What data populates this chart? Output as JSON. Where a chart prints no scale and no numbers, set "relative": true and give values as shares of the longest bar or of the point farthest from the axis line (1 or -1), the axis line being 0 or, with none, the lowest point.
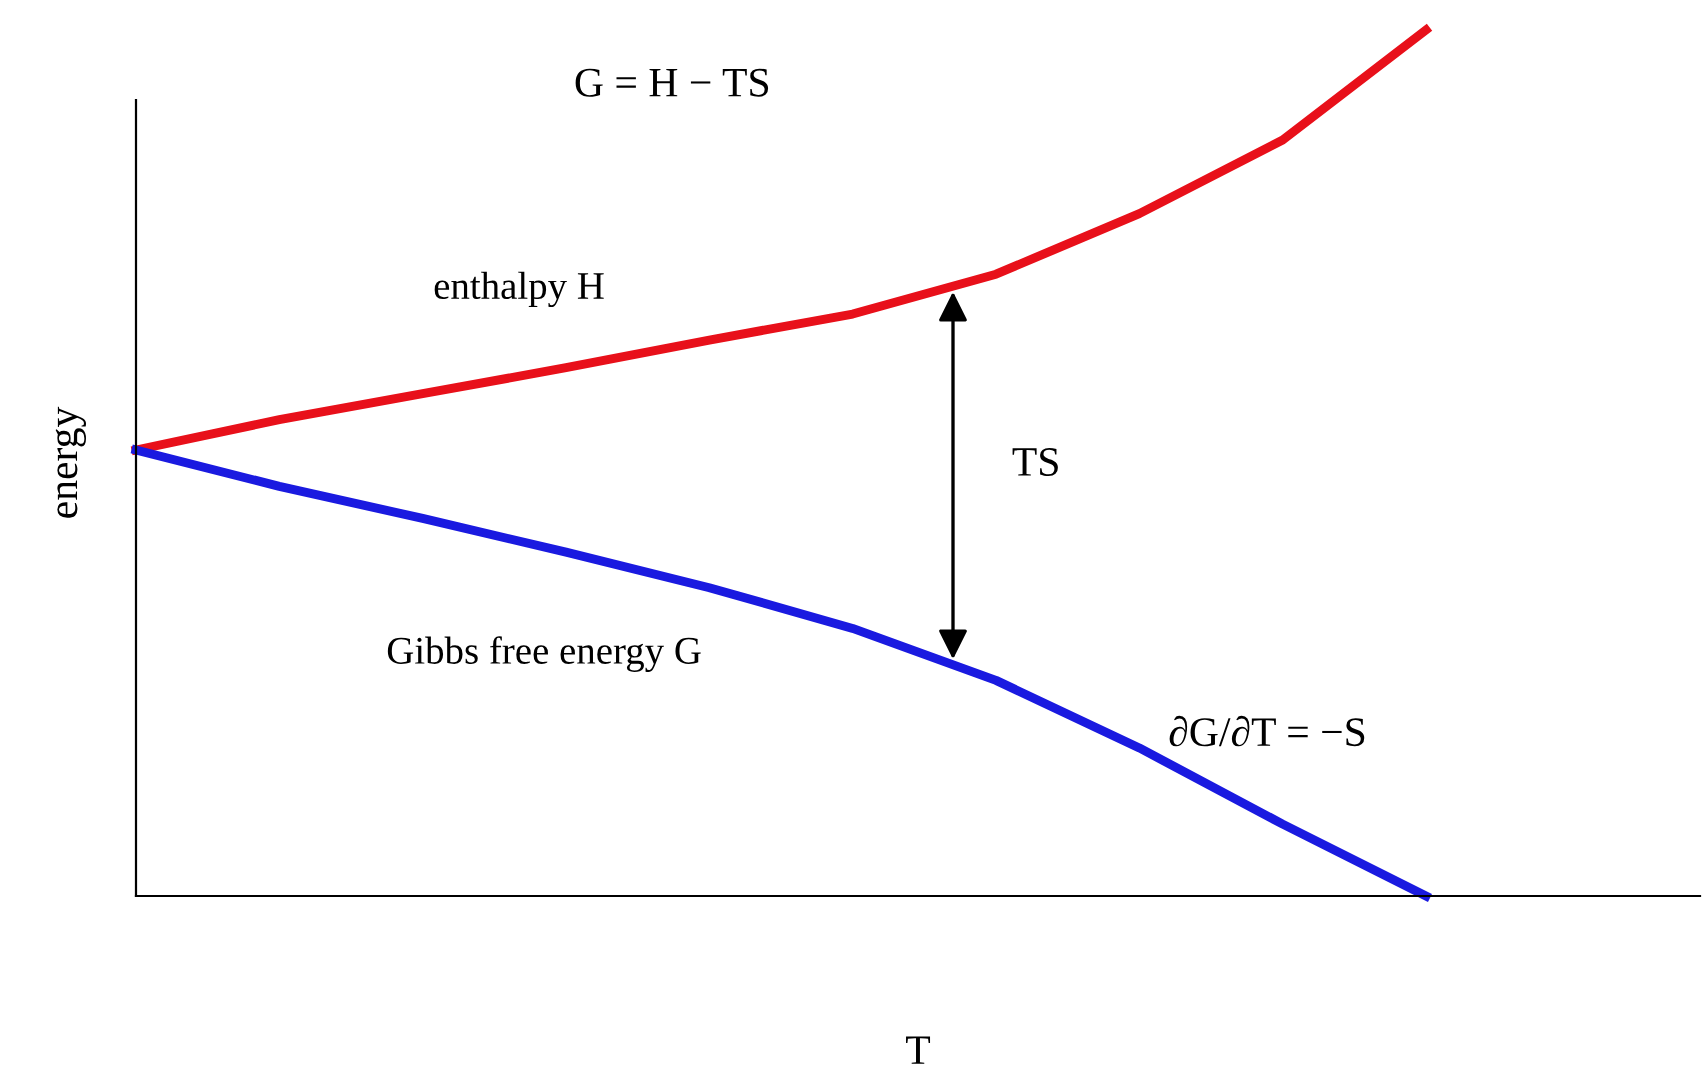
{
  "chart_data": {
    "type": "line",
    "relative": true,
    "xlabel": "T",
    "ylabel": "energy",
    "categories": [
      null,
      null,
      null,
      null,
      null,
      null,
      null,
      null,
      null,
      null
    ],
    "series": [
      {
        "name": "enthalpy H",
        "color": "#e8101a",
        "values": [
          0.515,
          0.55,
          0.58,
          0.61,
          0.642,
          0.672,
          0.718,
          0.788,
          0.873,
          1
        ]
      },
      {
        "name": "Gibbs free energy G",
        "color": "#1a1ae0",
        "values": [
          0.515,
          0.473,
          0.436,
          0.397,
          0.356,
          0.309,
          0.249,
          0.171,
          0.083,
          0
        ]
      }
    ],
    "annotations": [
      "G = H − TS",
      "TS",
      "∂G/∂T = −S"
    ],
    "marker": "none",
    "line_style": "solid"
  }
}
